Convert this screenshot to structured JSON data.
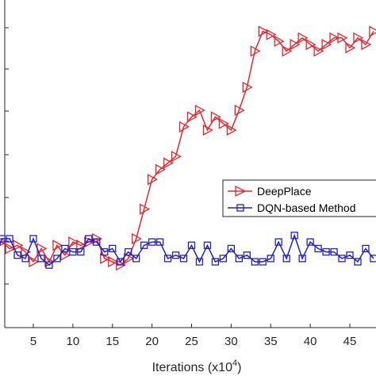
{
  "chart_data": {
    "type": "line",
    "title": "",
    "xlabel": "Iterations (x10",
    "xlabel_exp": "4",
    "xlabel_close": ")",
    "ylabel": "",
    "x_ticks": [
      "5",
      "10",
      "15",
      "20",
      "25",
      "30",
      "35",
      "40",
      "45"
    ],
    "xlim": [
      0,
      48
    ],
    "ylim": [
      0,
      1
    ],
    "grid": false,
    "legend_position": "center-right",
    "series": [
      {
        "name": "DeepPlace",
        "color": "#e5262d",
        "marker": "triangle-right",
        "x": [
          0,
          1,
          2,
          3,
          4,
          5,
          6,
          7,
          8,
          9,
          10,
          11,
          12,
          13,
          14,
          15,
          16,
          17,
          18,
          19,
          20,
          21,
          22,
          23,
          24,
          25,
          26,
          27,
          28,
          29,
          30,
          31,
          32,
          33,
          34,
          35,
          36,
          37,
          38,
          39,
          40,
          41,
          42,
          43,
          44,
          45,
          46,
          47,
          48
        ],
        "y": [
          0.25,
          0.26,
          0.24,
          0.25,
          0.23,
          0.2,
          0.24,
          0.2,
          0.25,
          0.22,
          0.26,
          0.25,
          0.26,
          0.27,
          0.21,
          0.2,
          0.19,
          0.21,
          0.27,
          0.36,
          0.45,
          0.48,
          0.5,
          0.52,
          0.61,
          0.64,
          0.66,
          0.6,
          0.64,
          0.62,
          0.6,
          0.66,
          0.73,
          0.84,
          0.9,
          0.89,
          0.87,
          0.84,
          0.86,
          0.88,
          0.86,
          0.84,
          0.86,
          0.88,
          0.88,
          0.85,
          0.88,
          0.86,
          0.9
        ]
      },
      {
        "name": "DQN-based Method",
        "color": "#1f1fcf",
        "marker": "square",
        "x": [
          0,
          1,
          2,
          3,
          4,
          5,
          6,
          7,
          8,
          9,
          10,
          11,
          12,
          13,
          14,
          15,
          16,
          17,
          18,
          19,
          20,
          21,
          22,
          23,
          24,
          25,
          26,
          27,
          28,
          29,
          30,
          31,
          32,
          33,
          34,
          35,
          36,
          37,
          38,
          39,
          40,
          41,
          42,
          43,
          44,
          45,
          46,
          47,
          48
        ],
        "y": [
          0.19,
          0.27,
          0.27,
          0.22,
          0.21,
          0.27,
          0.21,
          0.19,
          0.21,
          0.24,
          0.23,
          0.23,
          0.27,
          0.26,
          0.23,
          0.24,
          0.2,
          0.23,
          0.21,
          0.25,
          0.26,
          0.26,
          0.21,
          0.22,
          0.21,
          0.25,
          0.2,
          0.25,
          0.2,
          0.21,
          0.24,
          0.21,
          0.22,
          0.2,
          0.2,
          0.21,
          0.26,
          0.21,
          0.28,
          0.21,
          0.26,
          0.24,
          0.23,
          0.23,
          0.21,
          0.22,
          0.2,
          0.24,
          0.21
        ]
      }
    ]
  }
}
